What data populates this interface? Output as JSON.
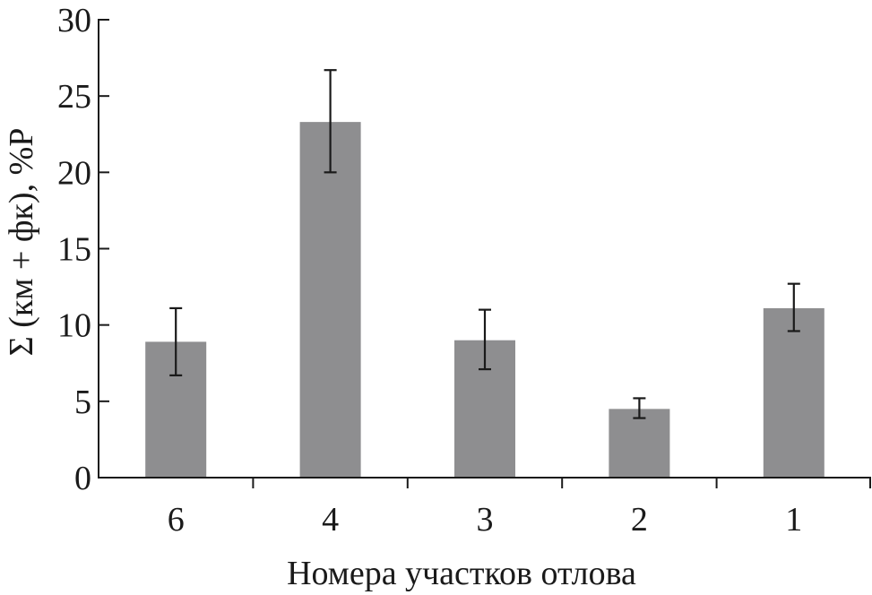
{
  "chart_data": {
    "type": "bar",
    "title": "",
    "xlabel": "Номера участков отлова",
    "ylabel": "Σ (км + фк), %Р",
    "categories": [
      "6",
      "4",
      "3",
      "2",
      "1"
    ],
    "values": [
      8.9,
      23.3,
      9.0,
      4.5,
      11.1
    ],
    "error_low": [
      6.7,
      20.0,
      7.1,
      3.9,
      9.6
    ],
    "error_high": [
      11.1,
      26.7,
      11.0,
      5.2,
      12.7
    ],
    "ylim": [
      0,
      30
    ],
    "yticks": [
      "0",
      "5",
      "10",
      "15",
      "20",
      "25",
      "30"
    ],
    "grid": false,
    "legend": "none",
    "colors": {
      "bar": "#8e8e90",
      "axis": "#1a1a1a",
      "error_bar": "#1a1a1a"
    }
  }
}
